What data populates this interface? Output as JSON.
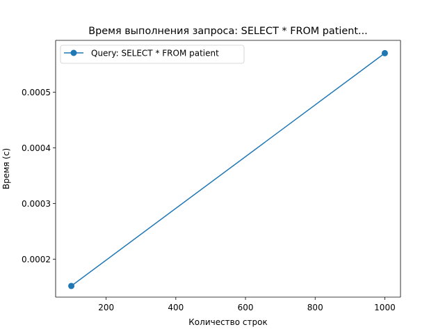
{
  "chart_data": {
    "type": "line",
    "title": "Время выполнения запроса: SELECT * FROM patient...",
    "xlabel": "Количество строк",
    "ylabel": "Время (с)",
    "xlim": [
      55,
      1045
    ],
    "ylim": [
      0.000132,
      0.000593
    ],
    "xticks": [
      200,
      400,
      600,
      800,
      1000
    ],
    "xtick_labels": [
      "200",
      "400",
      "600",
      "800",
      "1000"
    ],
    "yticks": [
      0.0002,
      0.0003,
      0.0004,
      0.0005
    ],
    "ytick_labels": [
      "0.0002",
      "0.0003",
      "0.0004",
      "0.0005"
    ],
    "grid": false,
    "legend_position": "top-left",
    "series": [
      {
        "name": "Query: SELECT * FROM patient",
        "color": "#1f77b4",
        "marker": "circle",
        "x": [
          100,
          1000
        ],
        "y": [
          0.000152,
          0.00057
        ]
      }
    ]
  }
}
